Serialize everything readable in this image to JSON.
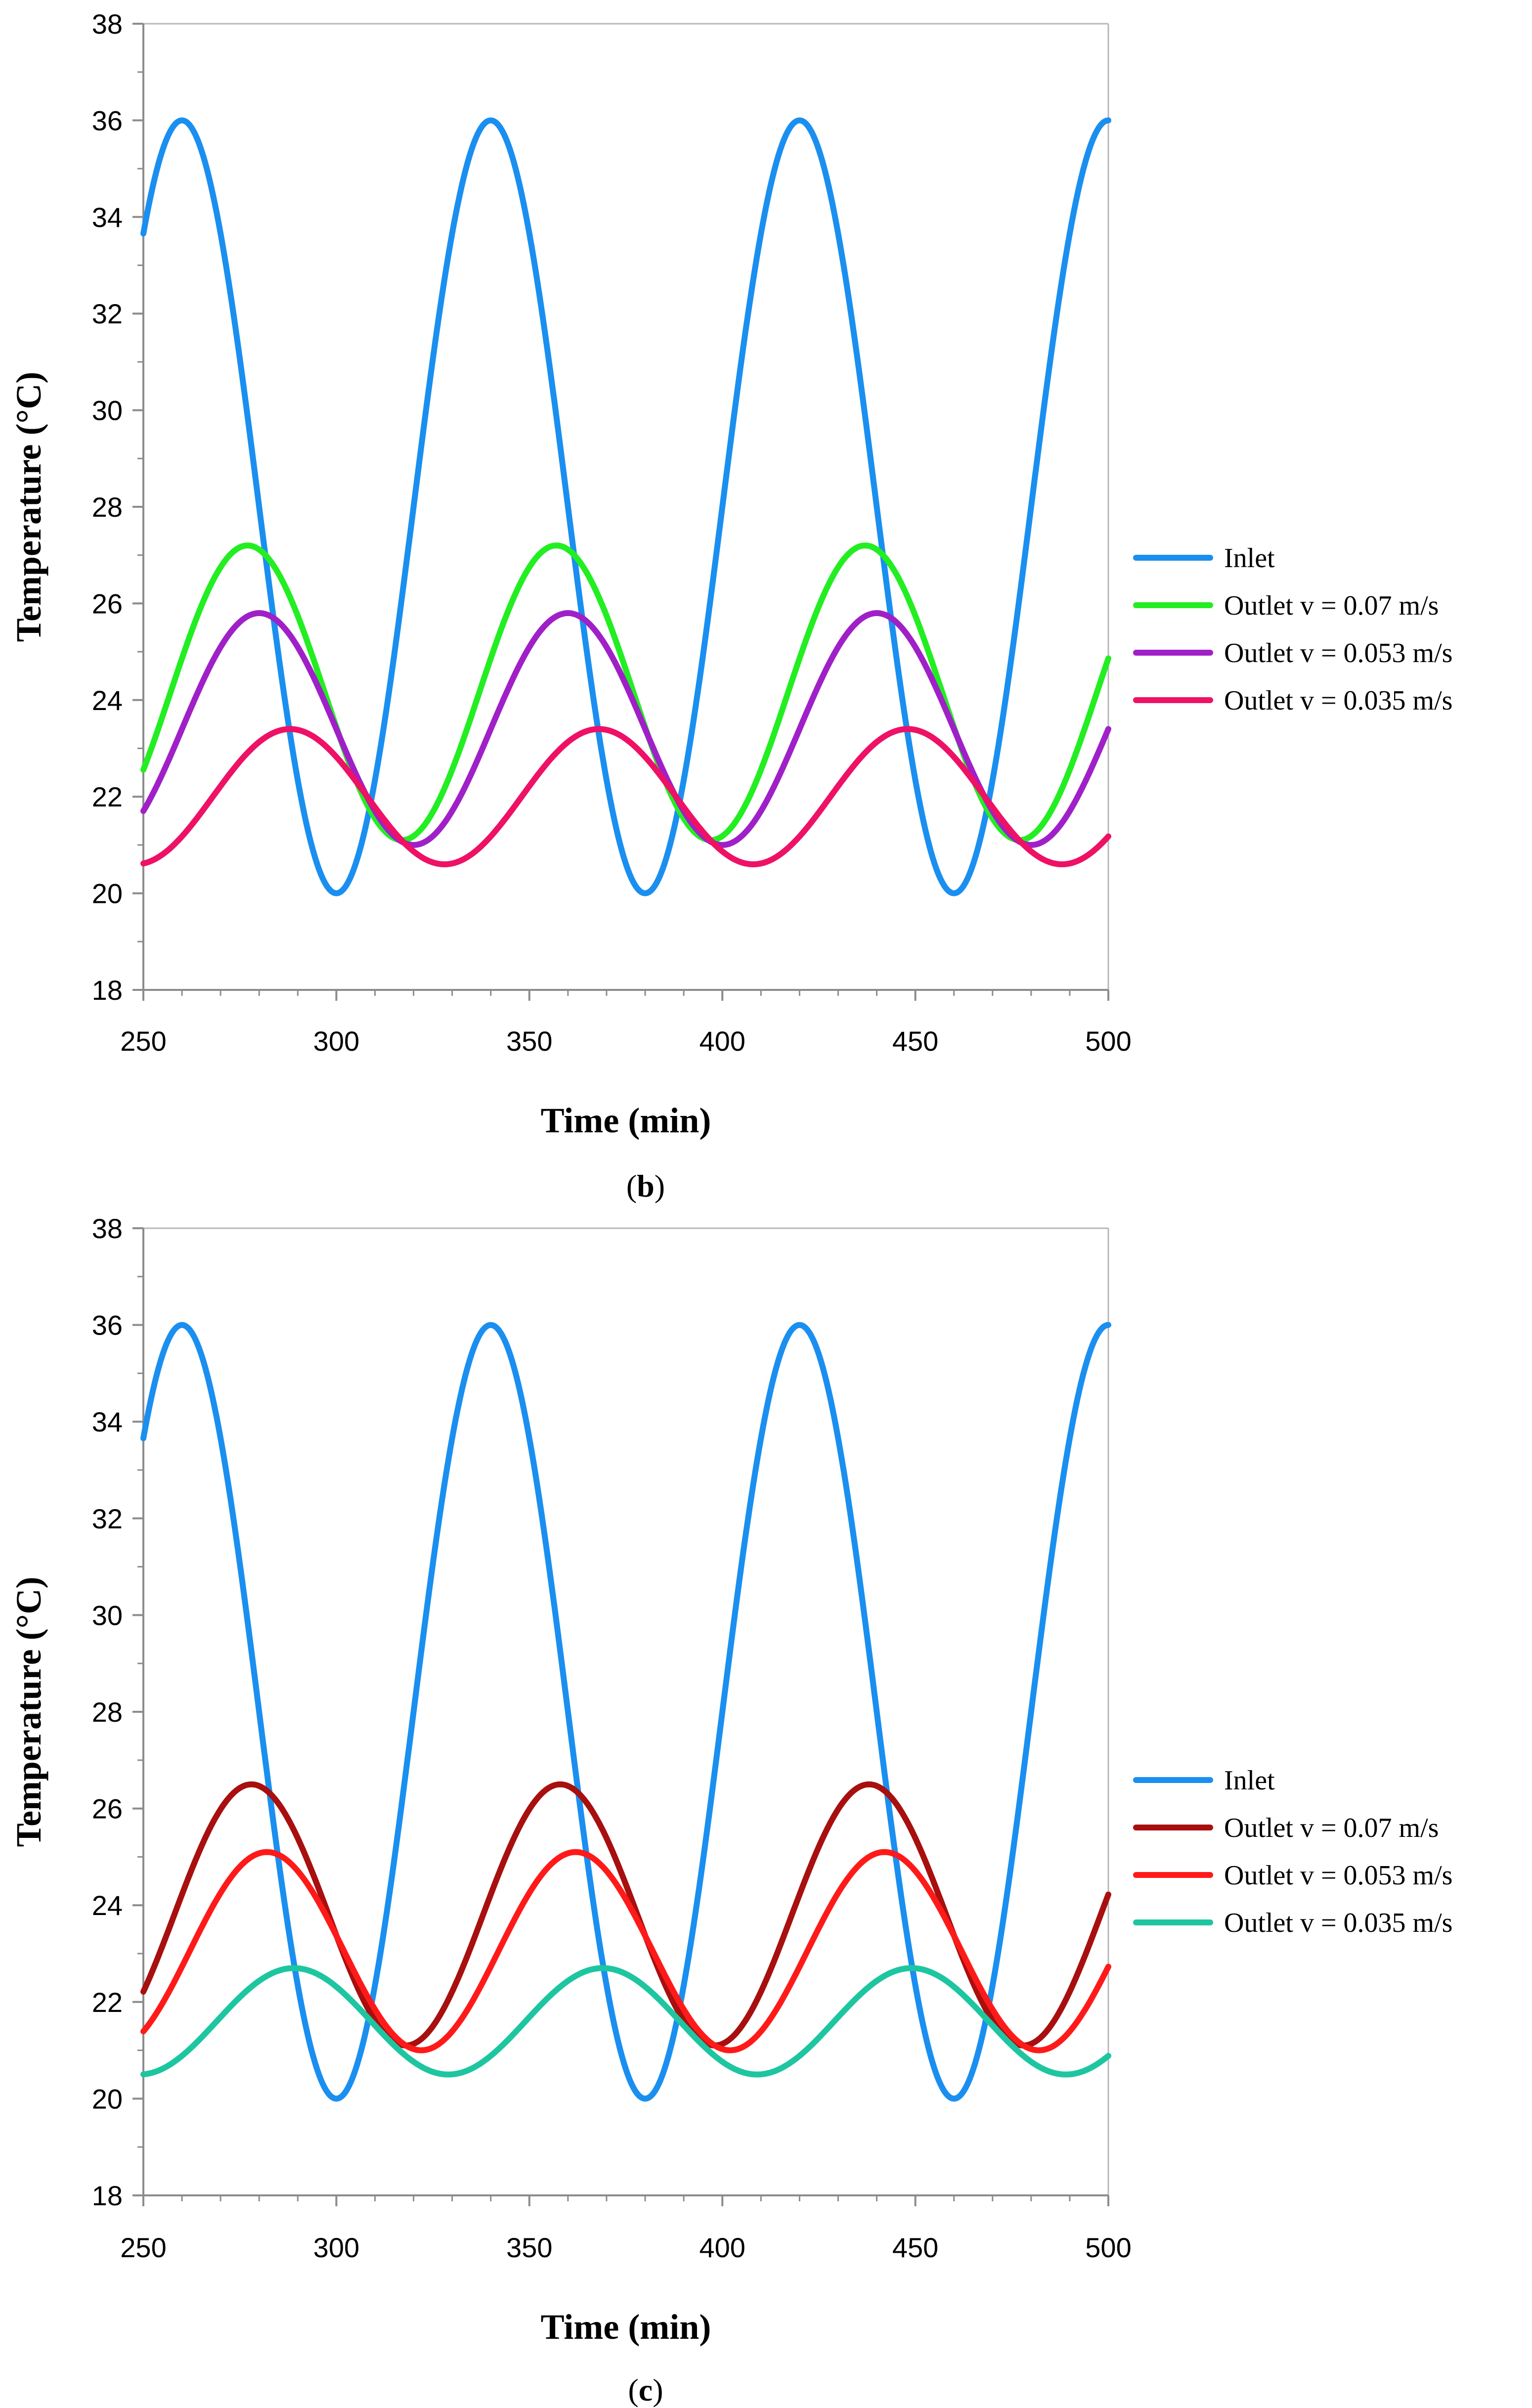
{
  "chart_data": [
    {
      "panel": "b",
      "type": "line",
      "title": "",
      "xlabel": "Time (min)",
      "ylabel": "Temperature (°C)",
      "xlim": [
        250,
        500
      ],
      "ylim": [
        18,
        38
      ],
      "xticks": [
        250,
        300,
        350,
        400,
        450,
        500
      ],
      "yticks": [
        18,
        20,
        22,
        24,
        26,
        28,
        30,
        32,
        34,
        36,
        38
      ],
      "grid": false,
      "legend_position": "right",
      "caption_open": "(",
      "caption_letter": "b",
      "caption_close": ")",
      "series": [
        {
          "name": "Inlet",
          "color": "#1a8ff0",
          "period": 80,
          "mean": 28,
          "amplitude": 8,
          "peak_time": 260,
          "x": [
            250,
            260,
            280,
            300,
            320,
            340,
            360,
            380,
            400,
            420,
            440,
            460,
            480,
            500
          ],
          "y": [
            33.7,
            36,
            28,
            20,
            28,
            36,
            28,
            20,
            28,
            36,
            28,
            20,
            28,
            36
          ]
        },
        {
          "name": "Outlet v = 0.07 m/s",
          "color": "#22ee22",
          "period": 80,
          "mean": 24.15,
          "amplitude": 3.05,
          "peak_time": 277,
          "x": [
            250,
            277,
            317,
            357,
            397,
            437,
            477,
            500
          ],
          "y": [
            22.65,
            27.2,
            21.1,
            27.2,
            21.1,
            27.2,
            21.1,
            25.2
          ]
        },
        {
          "name": "Outlet v = 0.053 m/s",
          "color": "#a020c8",
          "period": 80,
          "mean": 23.4,
          "amplitude": 2.4,
          "peak_time": 280,
          "x": [
            250,
            280,
            320,
            360,
            400,
            440,
            480,
            500
          ],
          "y": [
            21.7,
            25.8,
            21,
            25.8,
            21,
            25.8,
            21,
            23.6
          ]
        },
        {
          "name": "Outlet v = 0.035 m/s",
          "color": "#ee1166",
          "period": 80,
          "mean": 22,
          "amplitude": 1.4,
          "peak_time": 288,
          "x": [
            250,
            288,
            328,
            368,
            408,
            448,
            488,
            500
          ],
          "y": [
            20.6,
            23.4,
            20.6,
            23.4,
            20.6,
            23.4,
            20.6,
            21.3
          ]
        }
      ]
    },
    {
      "panel": "c",
      "type": "line",
      "title": "",
      "xlabel": "Time (min)",
      "ylabel": "Temperature (°C)",
      "xlim": [
        250,
        500
      ],
      "ylim": [
        18,
        38
      ],
      "xticks": [
        250,
        300,
        350,
        400,
        450,
        500
      ],
      "yticks": [
        18,
        20,
        22,
        24,
        26,
        28,
        30,
        32,
        34,
        36,
        38
      ],
      "grid": false,
      "legend_position": "right",
      "caption_open": "(",
      "caption_letter": "c",
      "caption_close": ")",
      "series": [
        {
          "name": "Inlet",
          "color": "#1a8ff0",
          "period": 80,
          "mean": 28,
          "amplitude": 8,
          "peak_time": 260,
          "x": [
            250,
            260,
            280,
            300,
            320,
            340,
            360,
            380,
            400,
            420,
            440,
            460,
            480,
            500
          ],
          "y": [
            33.7,
            36,
            28,
            20,
            28,
            36,
            28,
            20,
            28,
            36,
            28,
            20,
            28,
            36
          ]
        },
        {
          "name": "Outlet v = 0.07 m/s",
          "color": "#a80f0f",
          "period": 80,
          "mean": 23.8,
          "amplitude": 2.7,
          "peak_time": 278,
          "x": [
            250,
            278,
            318,
            358,
            398,
            438,
            478,
            500
          ],
          "y": [
            22.2,
            26.5,
            21.1,
            26.5,
            21.1,
            26.5,
            21.1,
            24.4
          ]
        },
        {
          "name": "Outlet v = 0.053 m/s",
          "color": "#ff1a1a",
          "period": 80,
          "mean": 23.05,
          "amplitude": 2.05,
          "peak_time": 282,
          "x": [
            250,
            282,
            322,
            362,
            402,
            442,
            482,
            500
          ],
          "y": [
            21.4,
            25.1,
            21,
            25.1,
            21,
            25.1,
            21,
            22.9
          ]
        },
        {
          "name": "Outlet v = 0.035 m/s",
          "color": "#1dc6a0",
          "period": 80,
          "mean": 21.6,
          "amplitude": 1.1,
          "peak_time": 289,
          "x": [
            250,
            289,
            329,
            369,
            409,
            449,
            489,
            500
          ],
          "y": [
            20.45,
            22.7,
            20.5,
            22.7,
            20.5,
            22.7,
            20.5,
            20.9
          ]
        }
      ]
    }
  ]
}
